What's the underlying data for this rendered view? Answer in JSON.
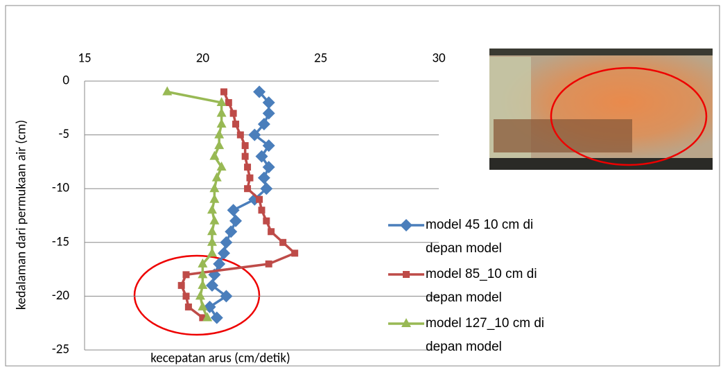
{
  "chart_data": {
    "type": "line",
    "x_label": "kecepatan arus (cm/detik)",
    "y_label": "kedalaman dari permukaan air (cm)",
    "y": [
      -1,
      -2,
      -3,
      -4,
      -5,
      -6,
      -7,
      -8,
      -9,
      -10,
      -11,
      -12,
      -13,
      -14,
      -15,
      -16,
      -17,
      -18,
      -19,
      -20,
      -21,
      -22
    ],
    "series": [
      {
        "name": "model 45 10 cm di depan model",
        "color": "#4a7ebb",
        "marker": "diamond",
        "values": [
          22.4,
          22.8,
          22.8,
          22.6,
          22.2,
          22.8,
          22.5,
          22.8,
          22.6,
          22.7,
          22.2,
          21.3,
          21.4,
          21.2,
          21.0,
          20.9,
          20.7,
          20.5,
          20.4,
          21.0,
          20.3,
          20.6
        ]
      },
      {
        "name": "model 85_10 cm di depan model",
        "color": "#be4b48",
        "marker": "square",
        "values": [
          20.9,
          21.1,
          21.3,
          21.4,
          21.6,
          21.8,
          21.8,
          21.9,
          22.0,
          21.9,
          22.4,
          22.5,
          22.7,
          22.9,
          23.4,
          23.9,
          22.8,
          19.3,
          19.1,
          19.3,
          19.4,
          20.0
        ]
      },
      {
        "name": "model 127_10 cm di depan model",
        "color": "#98b954",
        "marker": "triangle",
        "values": [
          18.5,
          20.8,
          20.8,
          20.8,
          20.7,
          20.7,
          20.5,
          20.8,
          20.6,
          20.5,
          20.5,
          20.4,
          20.5,
          20.4,
          20.4,
          20.4,
          20.0,
          20.0,
          20.0,
          19.9,
          20.0,
          20.2
        ]
      }
    ],
    "xlim": [
      15,
      30
    ],
    "xticks": [
      15,
      20,
      25,
      30
    ],
    "ylim": [
      -25,
      0
    ],
    "yticks": [
      0,
      -5,
      -10,
      -15,
      -20,
      -25
    ],
    "grid": true
  }
}
